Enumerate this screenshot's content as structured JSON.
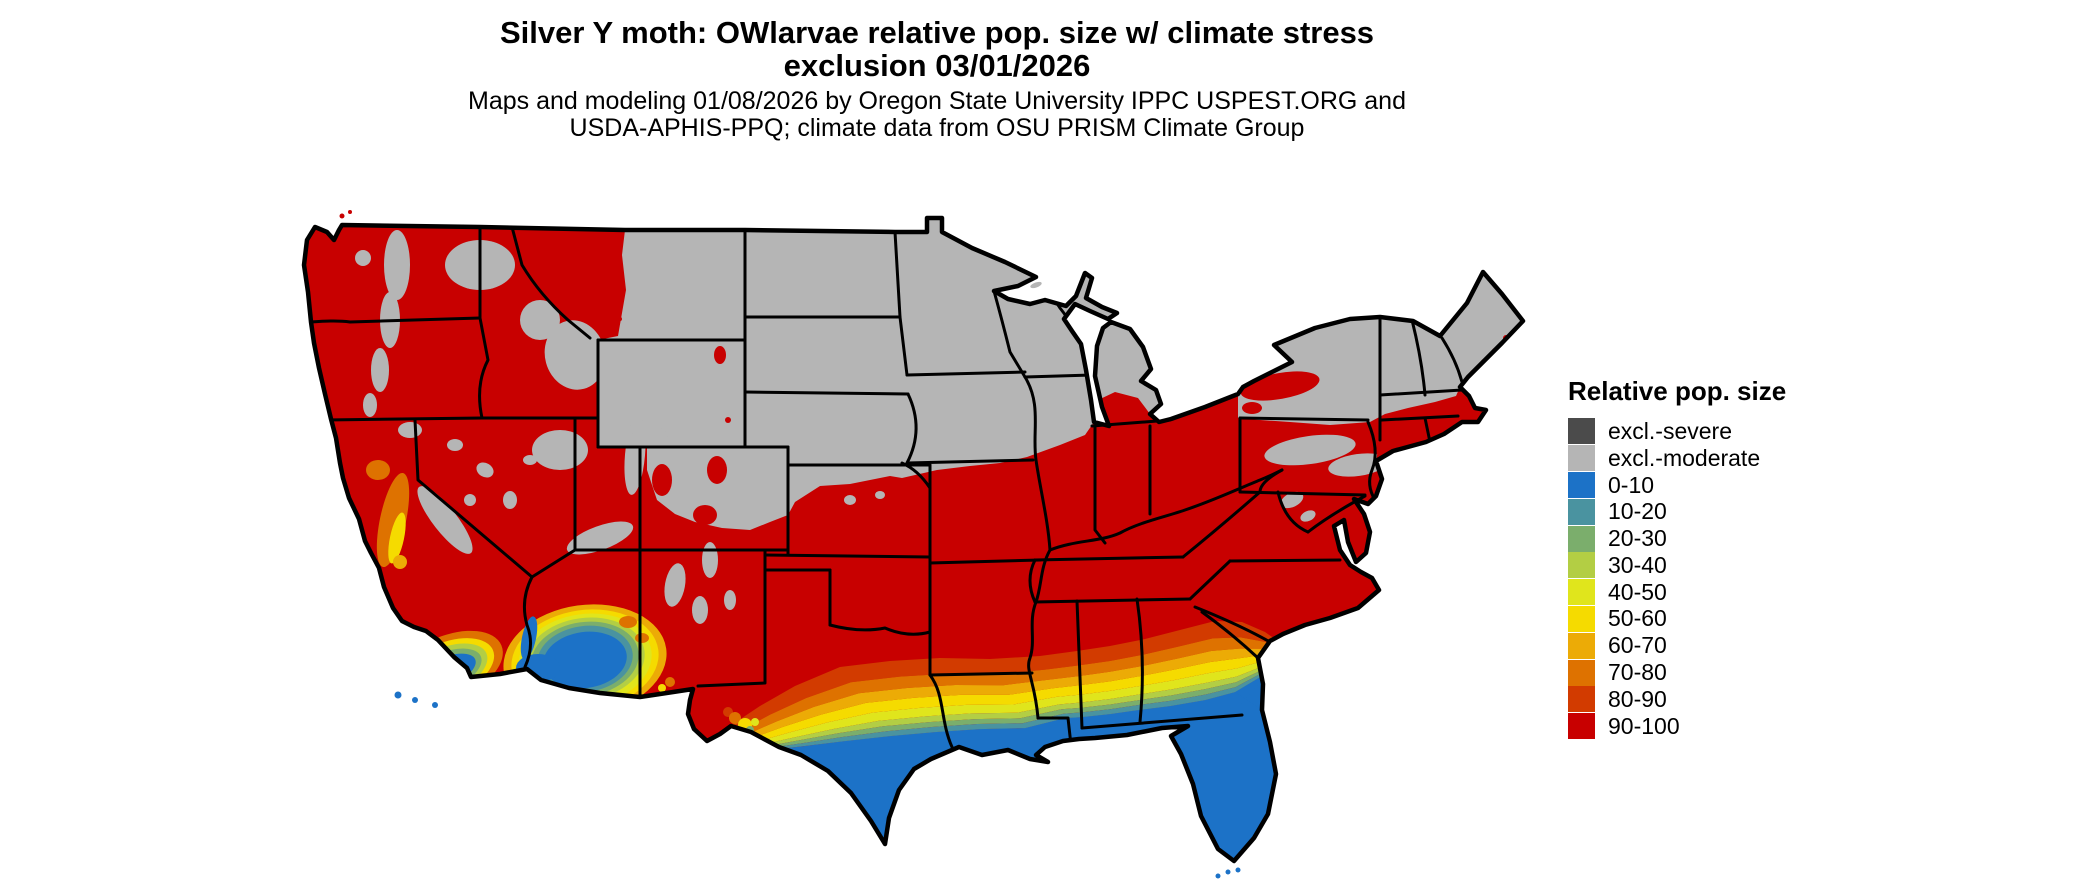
{
  "title": {
    "line1": "Silver Y moth: OWlarvae relative pop. size w/ climate stress",
    "line2": "exclusion 03/01/2026"
  },
  "subtitle": {
    "line1": "Maps and modeling 01/08/2026 by Oregon State University IPPC USPEST.ORG and",
    "line2": "USDA-APHIS-PPQ; climate data from OSU PRISM Climate Group"
  },
  "legend": {
    "title": "Relative pop. size",
    "entries": [
      {
        "key": "severe",
        "label": "excl.-severe",
        "color": "#4B4B4B"
      },
      {
        "key": "moderate",
        "label": "excl.-moderate",
        "color": "#B5B5B5"
      },
      {
        "key": "b0",
        "label": "0-10",
        "color": "#1C72C7"
      },
      {
        "key": "b10",
        "label": "10-20",
        "color": "#4A93A0"
      },
      {
        "key": "b20",
        "label": "20-30",
        "color": "#7BAE6C"
      },
      {
        "key": "b30",
        "label": "30-40",
        "color": "#B3CE44"
      },
      {
        "key": "b40",
        "label": "40-50",
        "color": "#E0E51C"
      },
      {
        "key": "b50",
        "label": "50-60",
        "color": "#F5DB00"
      },
      {
        "key": "b60",
        "label": "60-70",
        "color": "#ECAB06"
      },
      {
        "key": "b70",
        "label": "70-80",
        "color": "#DE7200"
      },
      {
        "key": "b80",
        "label": "80-90",
        "color": "#D23B00"
      },
      {
        "key": "b90",
        "label": "90-100",
        "color": "#C80000"
      }
    ]
  },
  "chart_data": {
    "type": "choropleth_map",
    "region": "Contiguous United States with state boundaries",
    "variable": "Relative population size (%) of Silver Y moth overwintering larvae, with climate-stress exclusion zones",
    "date_shown": "03/01/2026",
    "classes": [
      "excl.-severe",
      "excl.-moderate",
      "0-10",
      "10-20",
      "20-30",
      "30-40",
      "40-50",
      "50-60",
      "60-70",
      "70-80",
      "80-90",
      "90-100"
    ],
    "class_colors": [
      "#4B4B4B",
      "#B5B5B5",
      "#1C72C7",
      "#4A93A0",
      "#7BAE6C",
      "#B3CE44",
      "#E0E51C",
      "#F5DB00",
      "#ECAB06",
      "#DE7200",
      "#D23B00",
      "#C80000"
    ],
    "regions": [
      {
        "area": "Pacific Northwest lowlands, Oregon, most of California, Nevada, Utah, Idaho, western Montana, Arizona highlands, New Mexico",
        "class": "90-100"
      },
      {
        "area": "Cascades, Sierra Nevada, central Idaho, Utah/Colorado Rockies (high elevations)",
        "class": "excl.-moderate (patches)"
      },
      {
        "area": "Eastern Montana, Wyoming, Dakotas, Nebraska, northern Kansas, Minnesota, Iowa, Wisconsin, most of Michigan",
        "class": "excl.-moderate"
      },
      {
        "area": "Most of New York, northern Pennsylvania, Vermont, New Hampshire, Maine",
        "class": "excl.-moderate"
      },
      {
        "area": "Southern Plains, Oklahoma, northern Texas, Missouri, southern Illinois/Indiana/Ohio, Kentucky, Tennessee, Mid-Atlantic, Southeast interior",
        "class": "90-100"
      },
      {
        "area": "Coastal southern New England and Lake Ontario/Erie shores",
        "class": "90-100"
      },
      {
        "area": "Transition band across central Texas, Louisiana, Mississippi, Alabama, Georgia to coastal South Carolina",
        "class": "80-90 grading south to 10-20"
      },
      {
        "area": "South Texas, Gulf Coast strip, all of Florida, southwest Arizona low desert, southern California coast",
        "class": "0-10"
      },
      {
        "area": "California Central Valley and central coast",
        "class": "40-80 (yellow/orange patches)"
      },
      {
        "area": "excl.-severe",
        "class": "legend class only; no large visible areas at this scale"
      }
    ],
    "legend_position": "right",
    "background": "#ffffff"
  }
}
